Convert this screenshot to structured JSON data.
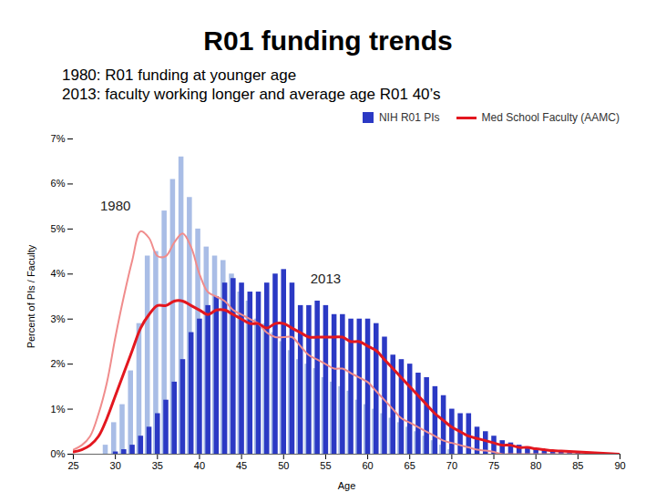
{
  "chart_data": {
    "type": "bar",
    "title": "R01 funding trends",
    "subtitle": [
      "1980: R01 funding at younger age",
      "2013: faculty working longer and average age R01 40’s"
    ],
    "x_label": "Age",
    "y_label": "Percent of PIs / Faculty",
    "x": [
      25,
      26,
      27,
      28,
      29,
      30,
      31,
      32,
      33,
      34,
      35,
      36,
      37,
      38,
      39,
      40,
      41,
      42,
      43,
      44,
      45,
      46,
      47,
      48,
      49,
      50,
      51,
      52,
      53,
      54,
      55,
      56,
      57,
      58,
      59,
      60,
      61,
      62,
      63,
      64,
      65,
      66,
      67,
      68,
      69,
      70,
      71,
      72,
      73,
      74,
      75,
      76,
      77,
      78,
      79,
      80,
      81,
      82,
      83,
      84,
      85,
      86,
      87,
      88,
      89,
      90
    ],
    "series": [
      {
        "name": "NIH R01 PIs",
        "type": "bar",
        "color": "#a9bde6",
        "values": [
          0,
          0,
          0,
          0,
          0.2,
          0.7,
          1.1,
          1.85,
          2.9,
          4.4,
          4.5,
          5.4,
          6.1,
          6.6,
          5.7,
          5.0,
          4.6,
          4.4,
          4.3,
          4.0,
          3.6,
          3.4,
          3.0,
          2.9,
          2.7,
          2.5,
          2.3,
          2.1,
          2.0,
          1.9,
          1.7,
          1.6,
          1.5,
          1.4,
          1.2,
          1.1,
          1.0,
          0.9,
          0.8,
          0.7,
          0.6,
          0.5,
          0.4,
          0.3,
          0.2,
          0.1,
          0,
          0,
          0,
          0,
          0,
          0,
          0,
          0,
          0,
          0,
          0,
          0,
          0,
          0,
          0,
          0,
          0,
          0,
          0,
          0
        ]
      },
      {
        "name": "NIH R01 PIs",
        "type": "bar",
        "color": "#2b39c4",
        "values": [
          0,
          0,
          0,
          0,
          0,
          0.05,
          0.1,
          0.2,
          0.4,
          0.6,
          0.9,
          1.2,
          1.6,
          2.1,
          2.7,
          3.0,
          3.3,
          3.5,
          3.8,
          3.9,
          3.8,
          3.6,
          3.6,
          3.8,
          4.0,
          4.1,
          3.8,
          3.3,
          3.3,
          3.4,
          3.3,
          3.1,
          3.1,
          3.0,
          3.0,
          3.0,
          2.9,
          2.6,
          2.2,
          2.1,
          2.0,
          1.8,
          1.7,
          1.5,
          1.3,
          1.0,
          0.9,
          0.9,
          0.6,
          0.5,
          0.4,
          0.3,
          0.25,
          0.2,
          0.15,
          0.1,
          0.1,
          0.05,
          0.05,
          0.03,
          0.02,
          0,
          0,
          0,
          0,
          0
        ]
      },
      {
        "name": "Med School Faculty (AAMC)",
        "type": "line",
        "color": "#f08c8c",
        "values": [
          0.1,
          0.2,
          0.4,
          0.9,
          1.6,
          2.6,
          3.5,
          4.3,
          4.95,
          4.8,
          4.4,
          4.4,
          4.7,
          4.9,
          4.6,
          4.0,
          3.6,
          3.5,
          3.4,
          3.2,
          3.1,
          3.0,
          2.9,
          2.7,
          2.6,
          2.6,
          2.6,
          2.4,
          2.2,
          2.1,
          2.0,
          1.9,
          1.9,
          1.8,
          1.7,
          1.6,
          1.4,
          1.2,
          1.0,
          0.8,
          0.7,
          0.6,
          0.5,
          0.4,
          0.3,
          0.25,
          0.2,
          0.15,
          0.1,
          0.08,
          0.05,
          0,
          0,
          0,
          0,
          0,
          0,
          0,
          0,
          0,
          0,
          0,
          0,
          0,
          0,
          0
        ]
      },
      {
        "name": "Med School Faculty (AAMC)",
        "type": "line",
        "color": "#e3171f",
        "values": [
          0.05,
          0.1,
          0.2,
          0.4,
          0.8,
          1.3,
          1.8,
          2.3,
          2.8,
          3.1,
          3.3,
          3.3,
          3.4,
          3.4,
          3.3,
          3.2,
          3.1,
          3.2,
          3.2,
          3.1,
          3.0,
          2.9,
          2.9,
          2.8,
          2.9,
          2.9,
          2.8,
          2.7,
          2.6,
          2.6,
          2.6,
          2.6,
          2.6,
          2.5,
          2.5,
          2.4,
          2.3,
          2.1,
          1.9,
          1.7,
          1.5,
          1.3,
          1.1,
          0.9,
          0.75,
          0.6,
          0.5,
          0.4,
          0.35,
          0.3,
          0.25,
          0.2,
          0.2,
          0.15,
          0.15,
          0.12,
          0.1,
          0.08,
          0.07,
          0.06,
          0.05,
          0.04,
          0.03,
          0.02,
          0.01,
          0
        ]
      }
    ],
    "annotations": [
      {
        "text": "1980",
        "x": 30,
        "y": 5.5
      },
      {
        "text": "2013",
        "x": 55,
        "y": 3.9
      }
    ],
    "xlim": [
      25,
      90
    ],
    "xticks": [
      25,
      30,
      35,
      40,
      45,
      50,
      55,
      60,
      65,
      70,
      75,
      80,
      85,
      90
    ],
    "ylim": [
      0,
      7
    ],
    "yticks": [
      {
        "value": 0,
        "label": "0%"
      },
      {
        "value": 1,
        "label": "1%"
      },
      {
        "value": 2,
        "label": "2%"
      },
      {
        "value": 3,
        "label": "3%"
      },
      {
        "value": 4,
        "label": "4%"
      },
      {
        "value": 5,
        "label": "5%"
      },
      {
        "value": 6,
        "label": "6%"
      },
      {
        "value": 7,
        "label": "7%"
      }
    ],
    "grid": false,
    "legend": "right"
  }
}
